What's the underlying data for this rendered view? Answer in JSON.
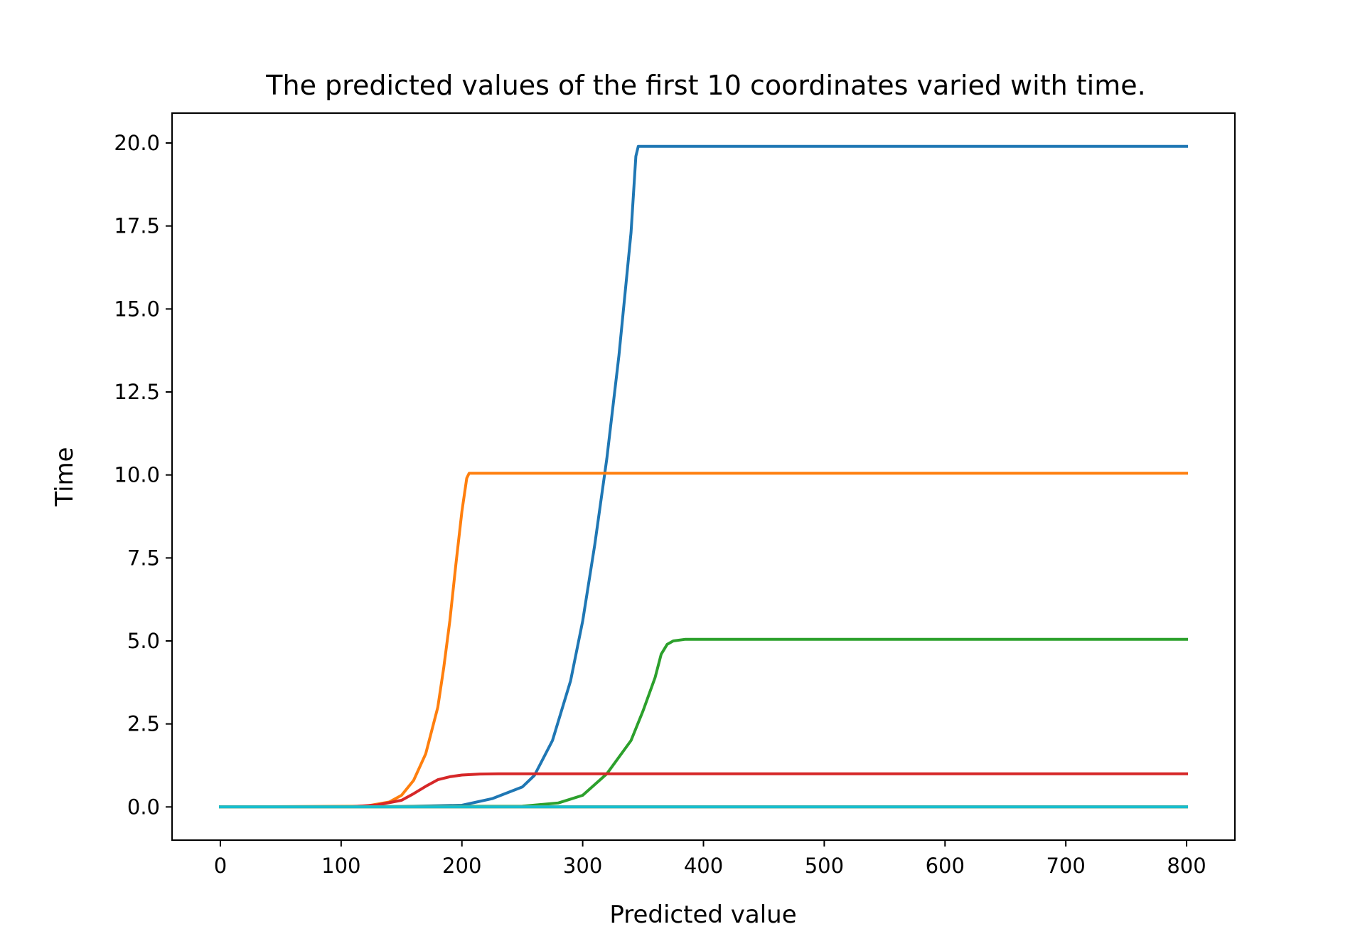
{
  "chart_data": {
    "type": "line",
    "title": "The predicted values of the first 10 coordinates varied with time.",
    "xlabel": "Predicted value",
    "ylabel": "Time",
    "xlim": [
      -40,
      840
    ],
    "ylim": [
      -1.0,
      20.9
    ],
    "xticks": [
      0,
      100,
      200,
      300,
      400,
      500,
      600,
      700,
      800
    ],
    "yticks": [
      0.0,
      2.5,
      5.0,
      7.5,
      10.0,
      12.5,
      15.0,
      17.5,
      20.0
    ],
    "xtick_labels": [
      "0",
      "100",
      "200",
      "300",
      "400",
      "500",
      "600",
      "700",
      "800"
    ],
    "ytick_labels": [
      "0.0",
      "2.5",
      "5.0",
      "7.5",
      "10.0",
      "12.5",
      "15.0",
      "17.5",
      "20.0"
    ],
    "grid": false,
    "legend": "none",
    "series": [
      {
        "color": "#1f77b4",
        "x": [
          0,
          150,
          200,
          225,
          250,
          260,
          275,
          290,
          300,
          310,
          320,
          330,
          340,
          344,
          346,
          800
        ],
        "y": [
          0.0,
          0.01,
          0.05,
          0.25,
          0.6,
          0.95,
          2.0,
          3.8,
          5.6,
          7.9,
          10.5,
          13.6,
          17.3,
          19.6,
          19.9,
          19.9
        ]
      },
      {
        "color": "#ff7f0e",
        "x": [
          0,
          120,
          140,
          150,
          160,
          170,
          180,
          185,
          190,
          195,
          200,
          204,
          206,
          800
        ],
        "y": [
          0.0,
          0.02,
          0.15,
          0.35,
          0.8,
          1.6,
          3.0,
          4.2,
          5.6,
          7.3,
          8.9,
          9.9,
          10.05,
          10.05
        ]
      },
      {
        "color": "#2ca02c",
        "x": [
          0,
          250,
          280,
          300,
          320,
          340,
          350,
          360,
          365,
          370,
          375,
          385,
          400,
          800
        ],
        "y": [
          0.0,
          0.02,
          0.12,
          0.35,
          1.0,
          2.0,
          2.9,
          3.9,
          4.6,
          4.9,
          5.0,
          5.05,
          5.05,
          5.05
        ]
      },
      {
        "color": "#d62728",
        "x": [
          0,
          110,
          130,
          150,
          160,
          170,
          180,
          190,
          200,
          215,
          230,
          800
        ],
        "y": [
          0.0,
          0.01,
          0.06,
          0.2,
          0.4,
          0.62,
          0.82,
          0.91,
          0.96,
          0.99,
          1.0,
          1.0
        ]
      },
      {
        "color": "#9467bd",
        "x": [
          0,
          800
        ],
        "y": [
          0.0,
          0.0
        ]
      },
      {
        "color": "#8c564b",
        "x": [
          0,
          800
        ],
        "y": [
          0.0,
          0.0
        ]
      },
      {
        "color": "#e377c2",
        "x": [
          0,
          800
        ],
        "y": [
          0.0,
          0.0
        ]
      },
      {
        "color": "#7f7f7f",
        "x": [
          0,
          800
        ],
        "y": [
          0.0,
          0.0
        ]
      },
      {
        "color": "#bcbd22",
        "x": [
          0,
          800
        ],
        "y": [
          0.0,
          0.0
        ]
      },
      {
        "color": "#17becf",
        "x": [
          0,
          800
        ],
        "y": [
          0.0,
          0.0
        ]
      }
    ]
  }
}
